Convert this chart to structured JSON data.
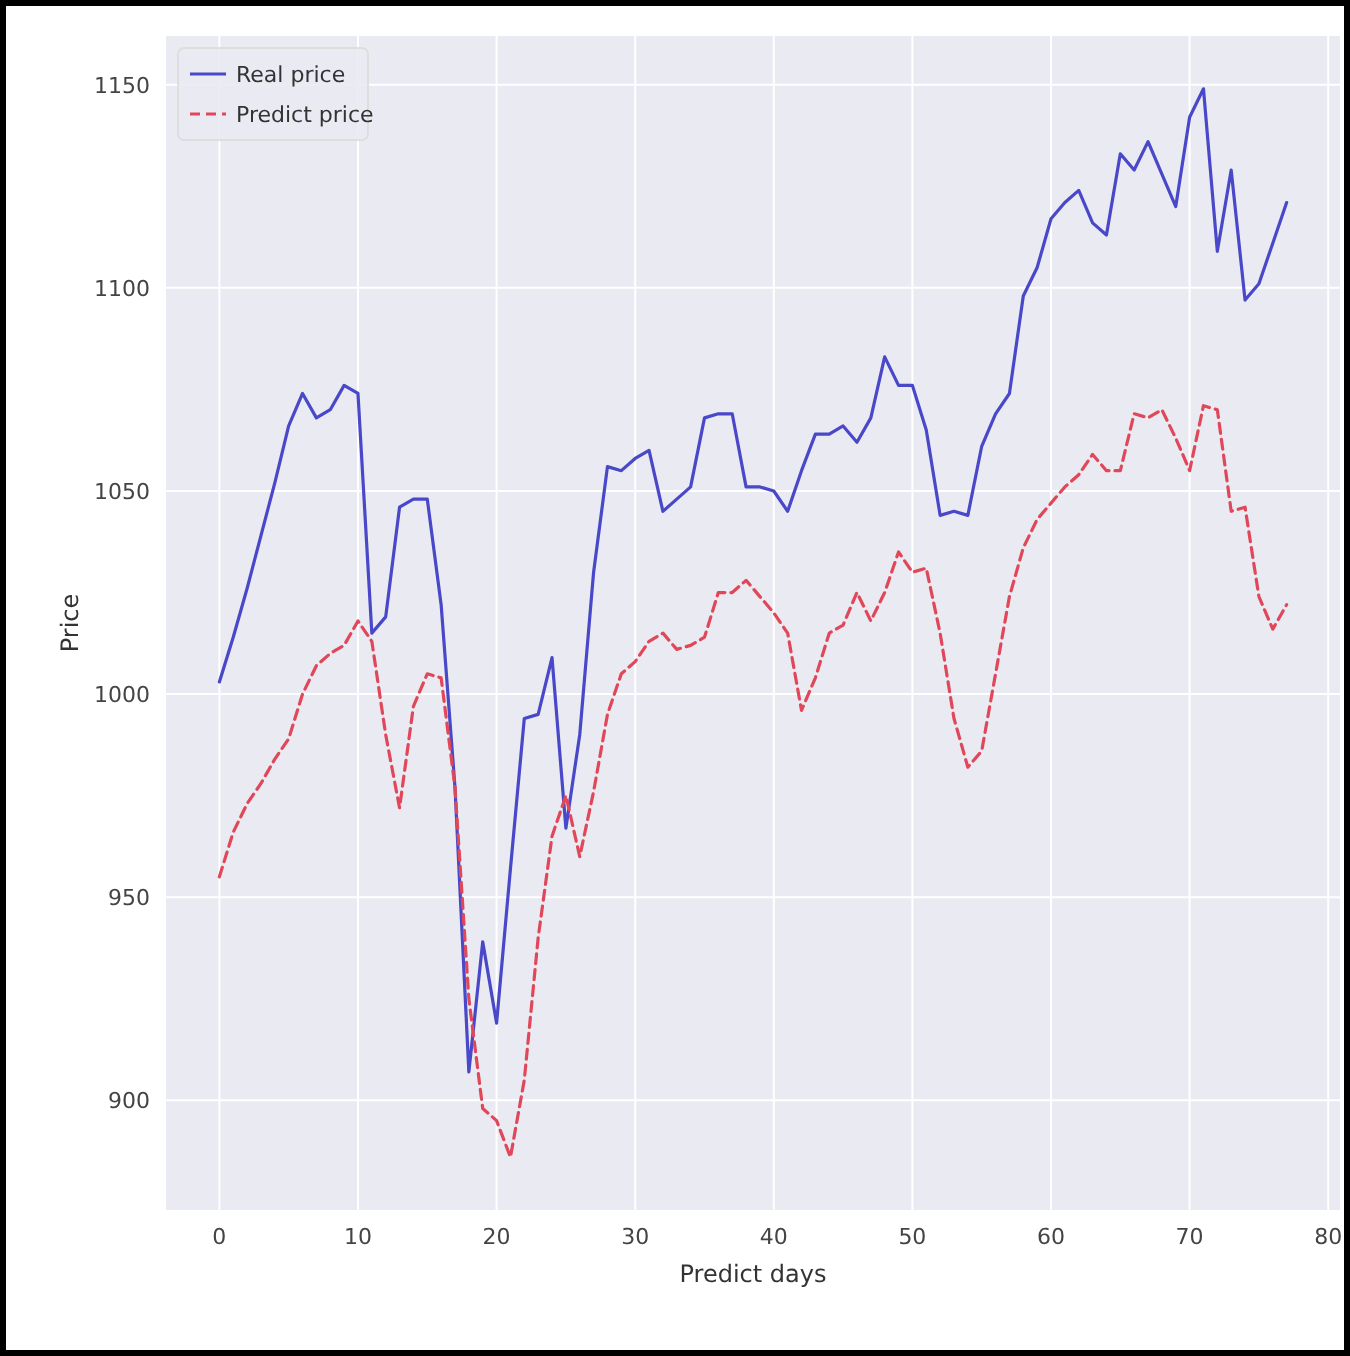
{
  "chart_data": {
    "type": "line",
    "xlabel": "Predict days",
    "ylabel": "Price",
    "x": [
      0,
      1,
      2,
      3,
      4,
      5,
      6,
      7,
      8,
      9,
      10,
      11,
      12,
      13,
      14,
      15,
      16,
      17,
      18,
      19,
      20,
      21,
      22,
      23,
      24,
      25,
      26,
      27,
      28,
      29,
      30,
      31,
      32,
      33,
      34,
      35,
      36,
      37,
      38,
      39,
      40,
      41,
      42,
      43,
      44,
      45,
      46,
      47,
      48,
      49,
      50,
      51,
      52,
      53,
      54,
      55,
      56,
      57,
      58,
      59,
      60,
      61,
      62,
      63,
      64,
      65,
      66,
      67,
      68,
      69,
      70,
      71,
      72,
      73,
      74,
      75,
      76,
      77
    ],
    "series": [
      {
        "name": "Real price",
        "color": "#4848c8",
        "line_style": "solid",
        "values": [
          1003,
          1014,
          1026,
          1039,
          1052,
          1066,
          1074,
          1068,
          1070,
          1076,
          1074,
          1015,
          1019,
          1046,
          1048,
          1048,
          1022,
          977,
          907,
          939,
          919,
          957,
          994,
          995,
          1009,
          967,
          990,
          1030,
          1056,
          1055,
          1058,
          1060,
          1045,
          1048,
          1051,
          1068,
          1069,
          1069,
          1051,
          1051,
          1050,
          1045,
          1055,
          1064,
          1064,
          1066,
          1062,
          1068,
          1083,
          1076,
          1076,
          1065,
          1044,
          1045,
          1044,
          1061,
          1069,
          1074,
          1098,
          1105,
          1117,
          1121,
          1124,
          1116,
          1113,
          1133,
          1129,
          1136,
          1128,
          1120,
          1142,
          1149,
          1109,
          1129,
          1097,
          1101,
          1111,
          1121
        ]
      },
      {
        "name": "Predict price",
        "color": "#e0485a",
        "line_style": "dashed",
        "values": [
          955,
          966,
          973,
          978,
          984,
          989,
          1000,
          1007,
          1010,
          1012,
          1018,
          1013,
          990,
          972,
          997,
          1005,
          1004,
          977,
          925,
          898,
          895,
          886,
          905,
          940,
          965,
          975,
          960,
          976,
          995,
          1005,
          1008,
          1013,
          1015,
          1011,
          1012,
          1014,
          1025,
          1025,
          1028,
          1024,
          1020,
          1015,
          996,
          1004,
          1015,
          1017,
          1025,
          1018,
          1025,
          1035,
          1030,
          1031,
          1015,
          994,
          982,
          986,
          1005,
          1024,
          1036,
          1043,
          1047,
          1051,
          1054,
          1059,
          1055,
          1055,
          1069,
          1068,
          1070,
          1063,
          1055,
          1071,
          1070,
          1045,
          1046,
          1024,
          1016,
          1022
        ]
      }
    ],
    "xlim": [
      -3.85,
      80.85
    ],
    "xticks": [
      0,
      10,
      20,
      30,
      40,
      50,
      60,
      70,
      80
    ],
    "ylim": [
      873,
      1162
    ],
    "yticks": [
      900,
      950,
      1000,
      1050,
      1100,
      1150
    ],
    "grid": true,
    "legend": "top left",
    "marker": "none"
  }
}
